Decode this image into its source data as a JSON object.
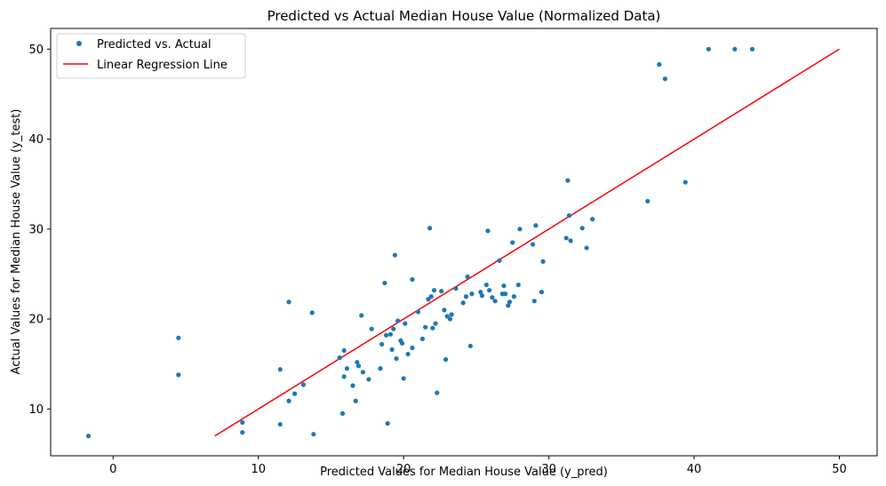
{
  "chart_data": {
    "type": "scatter",
    "title": "Predicted vs Actual Median House Value (Normalized Data)",
    "xlabel": "Predicted Values for Median House Value (y_pred)",
    "ylabel": "Actual Values for Median House Value (y_test)",
    "xlim": [
      -4.3,
      52.6
    ],
    "ylim": [
      4.8,
      52.3
    ],
    "xticks": [
      0,
      10,
      20,
      30,
      40,
      50
    ],
    "yticks": [
      10,
      20,
      30,
      40,
      50
    ],
    "grid": false,
    "legend_position": "top-left",
    "series": [
      {
        "name": "Predicted vs. Actual",
        "kind": "scatter",
        "color": "#1f77b4",
        "x": [
          -1.7,
          4.5,
          4.5,
          8.9,
          8.9,
          11.5,
          11.5,
          12.1,
          12.1,
          12.5,
          13.1,
          13.7,
          13.8,
          15.6,
          15.8,
          15.9,
          15.9,
          16.1,
          16.5,
          16.7,
          16.8,
          16.9,
          17.1,
          17.2,
          17.6,
          17.8,
          18.4,
          18.5,
          18.7,
          18.8,
          18.9,
          19.1,
          19.2,
          19.3,
          19.4,
          19.5,
          19.6,
          19.8,
          19.9,
          20.0,
          20.1,
          20.3,
          20.6,
          20.6,
          21.0,
          21.3,
          21.5,
          21.7,
          21.8,
          21.9,
          22.0,
          22.1,
          22.2,
          22.3,
          22.6,
          22.8,
          22.9,
          23.0,
          23.2,
          23.3,
          23.6,
          24.1,
          24.3,
          24.4,
          24.6,
          24.7,
          25.3,
          25.4,
          25.7,
          25.8,
          25.9,
          26.1,
          26.3,
          26.6,
          26.8,
          26.9,
          27.0,
          27.2,
          27.3,
          27.5,
          27.6,
          27.9,
          28.0,
          28.9,
          29.0,
          29.1,
          29.5,
          29.6,
          31.2,
          31.3,
          31.4,
          31.5,
          32.3,
          32.6,
          33.0,
          36.8,
          37.6,
          38.0,
          39.4,
          41.0,
          42.8,
          44.0
        ],
        "y": [
          7.0,
          17.9,
          13.8,
          8.5,
          7.4,
          14.4,
          8.3,
          21.9,
          10.9,
          11.7,
          12.7,
          20.7,
          7.2,
          15.7,
          9.5,
          16.5,
          13.6,
          14.5,
          12.6,
          10.9,
          15.2,
          14.8,
          20.4,
          14.1,
          13.3,
          18.9,
          14.5,
          17.2,
          24.0,
          18.2,
          8.4,
          18.3,
          16.6,
          18.9,
          27.1,
          15.6,
          19.8,
          17.6,
          17.3,
          13.4,
          19.5,
          16.1,
          24.4,
          16.8,
          20.8,
          17.8,
          19.1,
          22.2,
          30.1,
          22.5,
          19.0,
          23.2,
          19.5,
          11.8,
          23.1,
          21.0,
          15.5,
          20.3,
          20.0,
          20.5,
          23.4,
          21.8,
          22.5,
          24.7,
          17.0,
          22.8,
          23.0,
          22.6,
          23.8,
          29.8,
          23.2,
          22.4,
          22.0,
          26.5,
          22.8,
          23.7,
          22.8,
          21.5,
          21.9,
          28.5,
          22.5,
          23.8,
          30.0,
          28.3,
          22.0,
          30.4,
          23.0,
          26.4,
          29.0,
          35.4,
          31.5,
          28.7,
          30.1,
          27.9,
          31.1,
          33.1,
          48.3,
          46.7,
          35.2,
          50.0,
          50.0,
          50.0
        ]
      },
      {
        "name": "Linear Regression Line",
        "kind": "line",
        "color": "#ff0000",
        "x": [
          7.0,
          50.0
        ],
        "y": [
          7.0,
          50.0
        ]
      }
    ]
  }
}
